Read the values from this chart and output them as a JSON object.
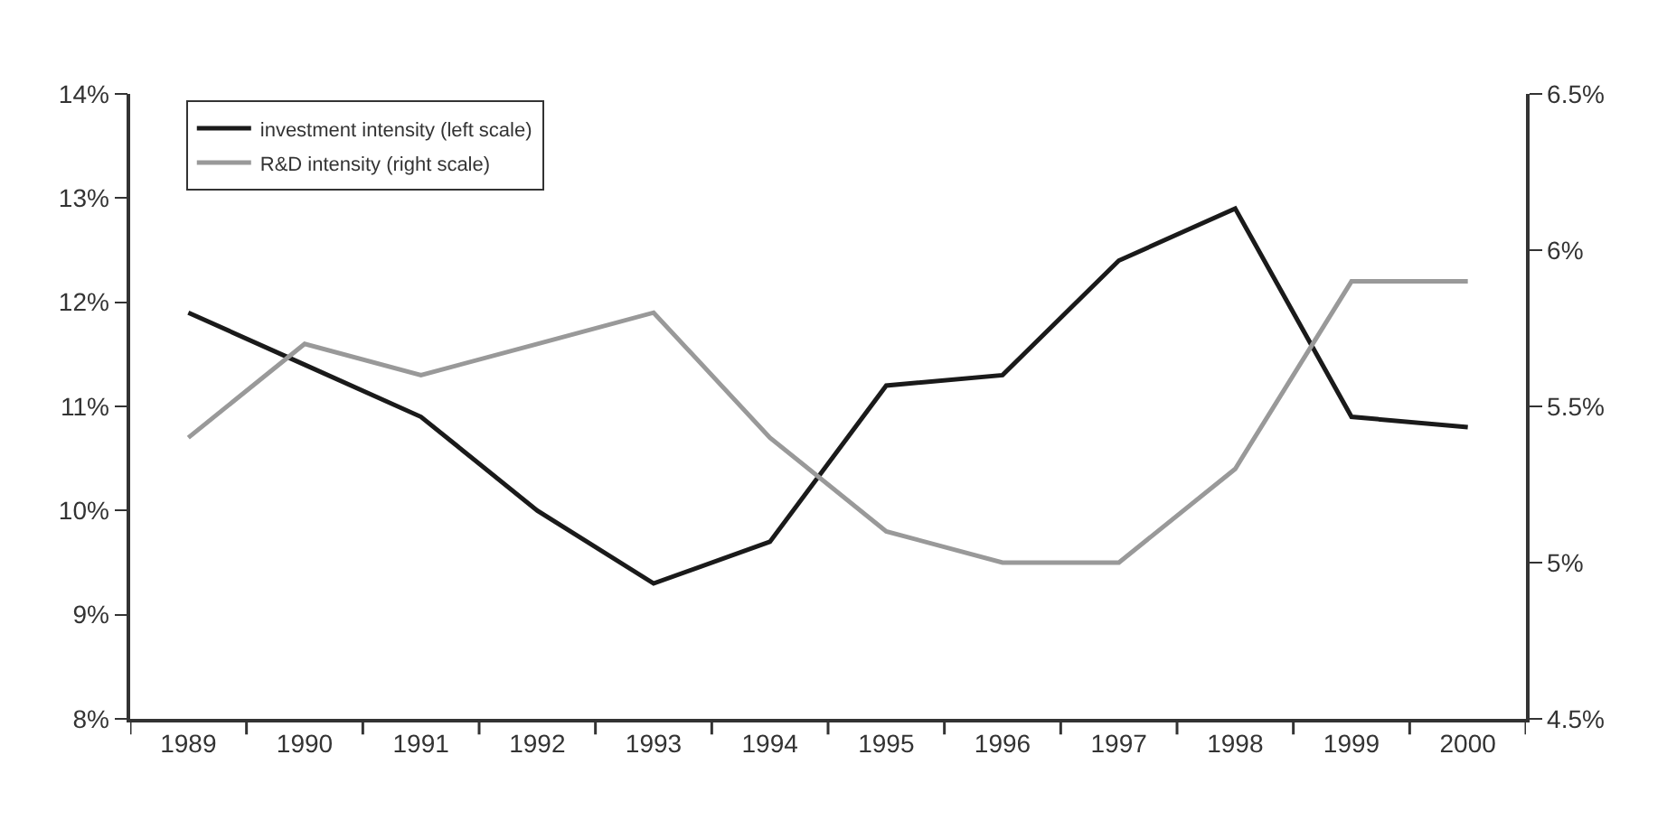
{
  "chart_data": {
    "type": "line",
    "categories": [
      "1989",
      "1990",
      "1991",
      "1992",
      "1993",
      "1994",
      "1995",
      "1996",
      "1997",
      "1998",
      "1999",
      "2000"
    ],
    "series": [
      {
        "name": "investment intensity (left scale)",
        "color": "#1a1a1a",
        "values": [
          11.9,
          11.4,
          10.9,
          10.0,
          9.3,
          9.7,
          11.2,
          11.3,
          12.4,
          12.9,
          10.9,
          10.8
        ]
      },
      {
        "name": "R&D intensity (right scale)",
        "color": "#999999",
        "axis": "y2",
        "values": [
          5.4,
          5.7,
          5.6,
          5.7,
          5.8,
          5.4,
          5.1,
          5.0,
          5.0,
          5.3,
          5.9,
          5.9
        ]
      }
    ],
    "ylim": [
      8,
      14
    ],
    "yticks": [
      {
        "value": 8,
        "label": "8%"
      },
      {
        "value": 9,
        "label": "9%"
      },
      {
        "value": 10,
        "label": "10%"
      },
      {
        "value": 11,
        "label": "11%"
      },
      {
        "value": 12,
        "label": "12%"
      },
      {
        "value": 13,
        "label": "13%"
      },
      {
        "value": 14,
        "label": "14%"
      }
    ],
    "y2lim": [
      4.5,
      6.5
    ],
    "y2ticks": [
      {
        "value": 4.5,
        "label": "4.5%"
      },
      {
        "value": 5,
        "label": "5%"
      },
      {
        "value": 5.5,
        "label": "5.5%"
      },
      {
        "value": 6,
        "label": "6%"
      },
      {
        "value": 6.5,
        "label": "6.5%"
      }
    ],
    "legend": "top left",
    "marker": "none",
    "line_style": "solid"
  }
}
